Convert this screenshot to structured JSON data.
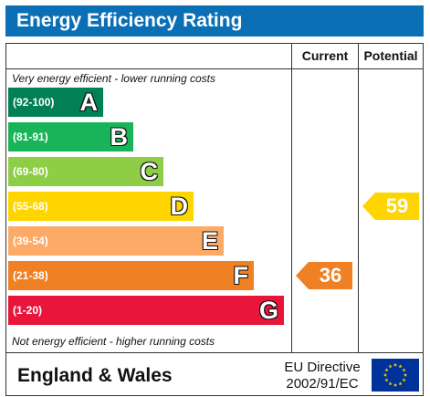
{
  "header": {
    "title": "Energy Efficiency Rating"
  },
  "columns": {
    "current": "Current",
    "potential": "Potential"
  },
  "captions": {
    "top": "Very energy efficient - lower running costs",
    "bottom": "Not energy efficient - higher running costs"
  },
  "chart_data": {
    "type": "bar",
    "title": "Energy Efficiency Rating",
    "categories": [
      "A",
      "B",
      "C",
      "D",
      "E",
      "F",
      "G"
    ],
    "bands": [
      {
        "letter": "A",
        "range": "(92-100)",
        "color": "#008054"
      },
      {
        "letter": "B",
        "range": "(81-91)",
        "color": "#19b459"
      },
      {
        "letter": "C",
        "range": "(69-80)",
        "color": "#8dce46"
      },
      {
        "letter": "D",
        "range": "(55-68)",
        "color": "#ffd500"
      },
      {
        "letter": "E",
        "range": "(39-54)",
        "color": "#fcaa65"
      },
      {
        "letter": "F",
        "range": "(21-38)",
        "color": "#ef8023"
      },
      {
        "letter": "G",
        "range": "(1-20)",
        "color": "#e9153b"
      }
    ],
    "ratings": {
      "current": {
        "value": "36",
        "band": "F",
        "color": "#ef8023"
      },
      "potential": {
        "value": "59",
        "band": "D",
        "color": "#ffd500"
      }
    }
  },
  "footer": {
    "country": "England & Wales",
    "directive_line1": "EU Directive",
    "directive_line2": "2002/91/EC",
    "flag_icon": "eu-flag-icon",
    "flag_color": "#003399",
    "star_color": "#ffcc00"
  }
}
